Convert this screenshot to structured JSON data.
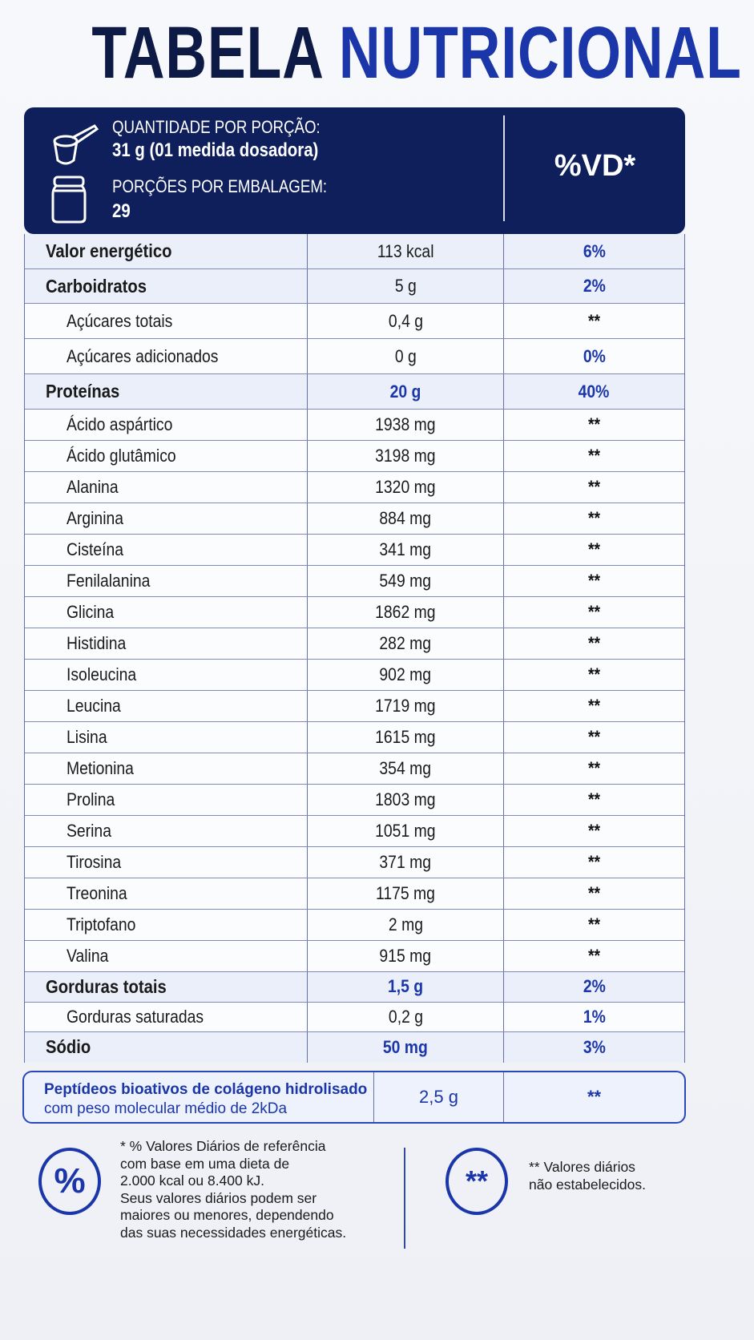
{
  "title": {
    "part1": "TABELA",
    "part2": "NUTRICIONAL"
  },
  "header": {
    "serving_label": "QUANTIDADE POR PORÇÃO:",
    "serving_value": "31 g (01 medida dosadora)",
    "servings_label": "PORÇÕES POR EMBALAGEM:",
    "servings_value": "29",
    "vd_label": "%VD*",
    "icons": [
      "measuring-scoop-icon",
      "jar-icon"
    ]
  },
  "colors": {
    "navy": "#0e1f5c",
    "accent_blue": "#1b36a8"
  },
  "rows": [
    {
      "name": "Valor energético",
      "value": "113 kcal",
      "vd": "6%",
      "level": "main",
      "value_emphasis": false
    },
    {
      "name": "Carboidratos",
      "value": "5 g",
      "vd": "2%",
      "level": "main",
      "value_emphasis": false
    },
    {
      "name": "Açúcares totais",
      "value": "0,4 g",
      "vd": "**",
      "level": "sub",
      "value_emphasis": false
    },
    {
      "name": "Açúcares adicionados",
      "value": "0 g",
      "vd": "0%",
      "level": "sub",
      "value_emphasis": false
    },
    {
      "name": "Proteínas",
      "value": "20 g",
      "vd": "40%",
      "level": "main",
      "value_emphasis": true
    },
    {
      "name": "Ácido aspártico",
      "value": "1938 mg",
      "vd": "**",
      "level": "sub",
      "value_emphasis": false
    },
    {
      "name": "Ácido glutâmico",
      "value": "3198 mg",
      "vd": "**",
      "level": "sub",
      "value_emphasis": false
    },
    {
      "name": "Alanina",
      "value": "1320 mg",
      "vd": "**",
      "level": "sub",
      "value_emphasis": false
    },
    {
      "name": "Arginina",
      "value": "884 mg",
      "vd": "**",
      "level": "sub",
      "value_emphasis": false
    },
    {
      "name": "Cisteína",
      "value": "341 mg",
      "vd": "**",
      "level": "sub",
      "value_emphasis": false
    },
    {
      "name": "Fenilalanina",
      "value": "549 mg",
      "vd": "**",
      "level": "sub",
      "value_emphasis": false
    },
    {
      "name": "Glicina",
      "value": "1862 mg",
      "vd": "**",
      "level": "sub",
      "value_emphasis": false
    },
    {
      "name": "Histidina",
      "value": "282 mg",
      "vd": "**",
      "level": "sub",
      "value_emphasis": false
    },
    {
      "name": "Isoleucina",
      "value": "902 mg",
      "vd": "**",
      "level": "sub",
      "value_emphasis": false
    },
    {
      "name": "Leucina",
      "value": "1719 mg",
      "vd": "**",
      "level": "sub",
      "value_emphasis": false
    },
    {
      "name": "Lisina",
      "value": "1615 mg",
      "vd": "**",
      "level": "sub",
      "value_emphasis": false
    },
    {
      "name": "Metionina",
      "value": "354 mg",
      "vd": "**",
      "level": "sub",
      "value_emphasis": false
    },
    {
      "name": "Prolina",
      "value": "1803 mg",
      "vd": "**",
      "level": "sub",
      "value_emphasis": false
    },
    {
      "name": "Serina",
      "value": "1051 mg",
      "vd": "**",
      "level": "sub",
      "value_emphasis": false
    },
    {
      "name": "Tirosina",
      "value": "371 mg",
      "vd": "**",
      "level": "sub",
      "value_emphasis": false
    },
    {
      "name": "Treonina",
      "value": "1175 mg",
      "vd": "**",
      "level": "sub",
      "value_emphasis": false
    },
    {
      "name": "Triptofano",
      "value": "2 mg",
      "vd": "**",
      "level": "sub",
      "value_emphasis": false
    },
    {
      "name": "Valina",
      "value": "915 mg",
      "vd": "**",
      "level": "sub",
      "value_emphasis": false
    },
    {
      "name": "Gorduras totais",
      "value": "1,5 g",
      "vd": "2%",
      "level": "main",
      "value_emphasis": true
    },
    {
      "name": "Gorduras saturadas",
      "value": "0,2 g",
      "vd": "1%",
      "level": "sub",
      "value_emphasis": false
    },
    {
      "name": "Sódio",
      "value": "50 mg",
      "vd": "3%",
      "level": "main",
      "value_emphasis": true
    }
  ],
  "peptides": {
    "line1": "Peptídeos bioativos de colágeno hidrolisado",
    "line2": "com peso molecular médio de 2kDa",
    "value": "2,5 g",
    "vd": "**"
  },
  "footer": {
    "percent_symbol": "%",
    "percent_note": "* % Valores Diários de referência\ncom base em uma dieta de\n2.000 kcal ou 8.400 kJ.\nSeus valores diários podem ser\nmaiores ou menores, dependendo\ndas suas necessidades energéticas.",
    "stars_symbol": "**",
    "stars_note": "** Valores diários\nnão estabelecidos."
  }
}
